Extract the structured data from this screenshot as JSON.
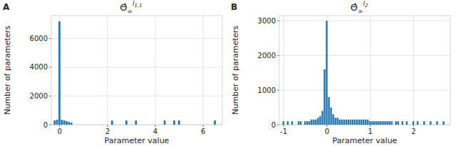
{
  "chart_data": [
    {
      "panel_label": "A",
      "type": "histogram",
      "title": {
        "base": "Θ̂",
        "sub": "∞",
        "sup": "l",
        "sup_sub": "1,1"
      },
      "x_label": "Parameter value",
      "y_label": "Number of parameters",
      "bins": [
        -0.25,
        -0.15,
        -0.05,
        0.05,
        0.15,
        0.25,
        0.35,
        0.45,
        0.55,
        0.65,
        0.75,
        0.85,
        0.95,
        1.05,
        1.15,
        1.25,
        1.35,
        1.45,
        1.55,
        1.65,
        1.75,
        1.85,
        1.95,
        2.05,
        2.15,
        2.25,
        2.35,
        2.45,
        2.55,
        2.65,
        2.75,
        2.85,
        2.95,
        3.05,
        3.15,
        3.25,
        3.35,
        3.45,
        3.55,
        3.65,
        3.75,
        3.85,
        3.95,
        4.05,
        4.15,
        4.25,
        4.35,
        4.45,
        4.55,
        4.65,
        4.75,
        4.85,
        4.95,
        5.05,
        5.15,
        5.25,
        5.35,
        5.45,
        5.55,
        5.65,
        5.75,
        5.85,
        5.95,
        6.05,
        6.15,
        6.25,
        6.35,
        6.45,
        6.55,
        6.65,
        6.75
      ],
      "counts": [
        300,
        350,
        7200,
        350,
        300,
        250,
        200,
        150,
        0,
        0,
        0,
        0,
        0,
        0,
        0,
        0,
        0,
        0,
        0,
        0,
        0,
        0,
        0,
        0,
        300,
        0,
        0,
        0,
        0,
        0,
        300,
        0,
        0,
        0,
        300,
        0,
        0,
        0,
        0,
        0,
        0,
        0,
        0,
        0,
        0,
        0,
        300,
        0,
        0,
        0,
        300,
        0,
        300,
        0,
        0,
        0,
        0,
        0,
        0,
        0,
        0,
        0,
        0,
        0,
        0,
        0,
        0,
        300,
        0,
        0
      ],
      "color": "#1f77b4",
      "xlim": [
        -0.35,
        6.8
      ],
      "ylim": [
        0,
        7600
      ],
      "xticks": [
        0,
        2,
        4,
        6
      ],
      "yticks": [
        0,
        2000,
        4000,
        6000
      ],
      "grid": true
    },
    {
      "panel_label": "B",
      "type": "histogram",
      "title": {
        "base": "Θ̂",
        "sub": "∞",
        "sup": "l",
        "sup_sub": "2"
      },
      "x_label": "Parameter value",
      "y_label": "Number of parameters",
      "bins": [
        -1.025,
        -0.975,
        -0.925,
        -0.875,
        -0.825,
        -0.775,
        -0.725,
        -0.675,
        -0.625,
        -0.575,
        -0.525,
        -0.475,
        -0.425,
        -0.375,
        -0.325,
        -0.275,
        -0.225,
        -0.175,
        -0.125,
        -0.075,
        -0.025,
        0.025,
        0.075,
        0.125,
        0.175,
        0.225,
        0.275,
        0.325,
        0.375,
        0.425,
        0.475,
        0.525,
        0.575,
        0.625,
        0.675,
        0.725,
        0.775,
        0.825,
        0.875,
        0.925,
        0.975,
        1.025,
        1.075,
        1.125,
        1.175,
        1.225,
        1.275,
        1.325,
        1.375,
        1.425,
        1.475,
        1.525,
        1.575,
        1.625,
        1.675,
        1.725,
        1.775,
        1.825,
        1.875,
        1.925,
        1.975,
        2.025,
        2.075,
        2.125,
        2.175,
        2.225,
        2.275,
        2.325,
        2.375,
        2.425,
        2.475,
        2.525,
        2.575,
        2.625,
        2.675,
        2.725,
        2.775
      ],
      "counts": [
        100,
        0,
        100,
        0,
        100,
        0,
        0,
        100,
        100,
        0,
        100,
        100,
        100,
        150,
        150,
        150,
        200,
        250,
        400,
        1600,
        3000,
        800,
        500,
        300,
        200,
        200,
        150,
        150,
        150,
        150,
        150,
        150,
        150,
        150,
        150,
        150,
        150,
        150,
        150,
        150,
        100,
        100,
        100,
        100,
        100,
        100,
        100,
        100,
        100,
        100,
        100,
        0,
        100,
        100,
        0,
        100,
        0,
        100,
        0,
        0,
        100,
        0,
        100,
        0,
        0,
        100,
        0,
        0,
        100,
        0,
        0,
        100,
        0,
        0,
        100,
        0
      ],
      "color": "#1f77b4",
      "xlim": [
        -1.1,
        2.85
      ],
      "ylim": [
        0,
        3150
      ],
      "xticks": [
        -1,
        0,
        1,
        2
      ],
      "yticks": [
        0,
        1000,
        2000,
        3000
      ],
      "grid": true
    }
  ]
}
